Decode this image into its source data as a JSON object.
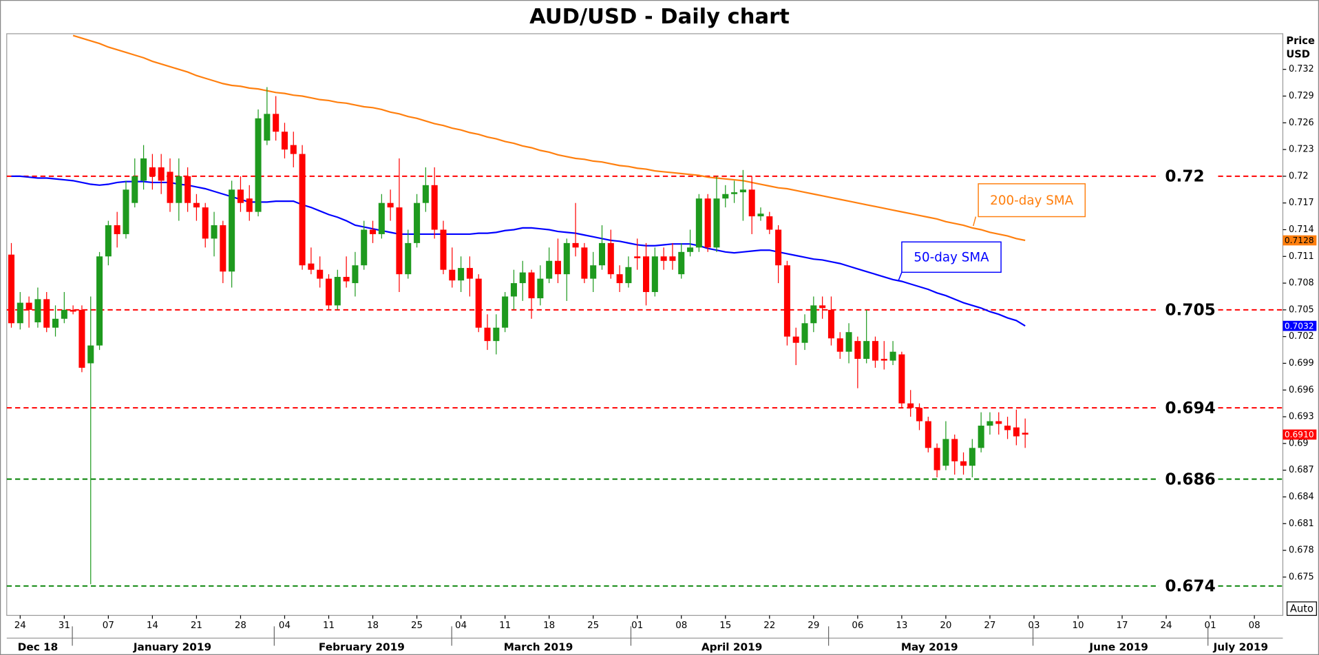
{
  "chart_data": {
    "type": "candlestick",
    "title": "AUD/USD - Daily chart",
    "y_label_lines": [
      "Price",
      "USD"
    ],
    "button": "Auto",
    "up_color": "#1e9a1e",
    "down_color": "#ff0000",
    "ylim": [
      0.6707,
      0.736
    ],
    "yticks": [
      0.675,
      0.678,
      0.681,
      0.684,
      0.687,
      0.69,
      0.693,
      0.696,
      0.699,
      0.702,
      0.705,
      0.708,
      0.711,
      0.714,
      0.717,
      0.72,
      0.723,
      0.726,
      0.729,
      0.732
    ],
    "x_groups": [
      "Dec 18",
      "January 2019",
      "February 2019",
      "March 2019",
      "April 2019",
      "May 2019",
      "June 2019",
      "July 2019"
    ],
    "categories": [
      null,
      "24",
      null,
      null,
      null,
      null,
      "31",
      null,
      null,
      null,
      null,
      "07",
      null,
      null,
      null,
      null,
      "14",
      null,
      null,
      null,
      null,
      "21",
      null,
      null,
      null,
      null,
      "28",
      null,
      null,
      null,
      null,
      "04",
      null,
      null,
      null,
      null,
      "11",
      null,
      null,
      null,
      null,
      "18",
      null,
      null,
      null,
      null,
      "25",
      null,
      null,
      null,
      null,
      "04",
      null,
      null,
      null,
      null,
      "11",
      null,
      null,
      null,
      null,
      "18",
      null,
      null,
      null,
      null,
      "25",
      null,
      null,
      null,
      null,
      "01",
      null,
      null,
      null,
      null,
      "08",
      null,
      null,
      null,
      null,
      "15",
      null,
      null,
      null,
      null,
      "22",
      null,
      null,
      null,
      null,
      "29",
      null,
      null,
      null,
      null,
      "06",
      null,
      null,
      null,
      null,
      "13",
      null,
      null,
      null,
      null,
      "20",
      null,
      null,
      null,
      null,
      "27",
      null,
      null,
      null,
      null,
      "03",
      null,
      null,
      null,
      null,
      "10",
      null,
      null,
      null,
      null,
      "17",
      null,
      null,
      null,
      null,
      "24",
      null,
      null,
      null,
      null,
      "01",
      null,
      null,
      null,
      null,
      "08"
    ],
    "open": [
      0.7112,
      0.7035,
      0.7058,
      0.7036,
      0.7062,
      0.703,
      0.704,
      0.705,
      0.705,
      0.699,
      0.701,
      0.711,
      0.7145,
      0.7135,
      0.717,
      0.7195,
      0.721,
      0.721,
      0.7205,
      0.717,
      0.72,
      0.717,
      0.7165,
      0.713,
      0.7145,
      0.7093,
      0.7185,
      0.7175,
      0.716,
      0.724,
      0.727,
      0.725,
      0.7235,
      0.7225,
      0.7102,
      0.7095,
      0.7085,
      0.7055,
      0.7087,
      0.708,
      0.71,
      0.714,
      0.7135,
      0.717,
      0.7165,
      0.709,
      0.7125,
      0.717,
      0.719,
      0.714,
      0.7095,
      0.7083,
      0.7097,
      0.7085,
      0.703,
      0.7015,
      0.703,
      0.7065,
      0.708,
      0.7092,
      0.7063,
      0.7085,
      0.7105,
      0.709,
      0.7125,
      0.712,
      0.7085,
      0.71,
      0.7125,
      0.709,
      0.708,
      0.711,
      0.711,
      0.707,
      0.711,
      0.711,
      0.709,
      0.7115,
      0.712,
      0.7175,
      0.712,
      0.7175,
      0.718,
      0.7182,
      0.7185,
      0.7155,
      0.7155,
      0.714,
      0.71,
      0.702,
      0.7013,
      0.7035,
      0.7055,
      0.705,
      0.7018,
      0.7003,
      0.7015,
      0.6995,
      0.7015,
      0.6995,
      0.6993,
      0.7,
      0.6945,
      0.694,
      0.6925,
      0.6895,
      0.6875,
      0.6905,
      0.688,
      0.6875,
      0.6895,
      0.692,
      0.6925,
      0.692,
      0.6918,
      0.6912,
      null,
      null,
      null,
      null,
      null,
      null,
      null,
      null,
      null,
      null,
      null,
      null,
      null,
      null,
      null,
      null,
      null,
      null,
      null,
      null,
      null,
      null,
      null,
      null,
      null,
      null
    ],
    "high": [
      0.7125,
      0.707,
      0.7065,
      0.7075,
      0.707,
      0.7055,
      0.707,
      0.7055,
      0.7055,
      0.7065,
      0.7115,
      0.715,
      0.716,
      0.7195,
      0.722,
      0.7235,
      0.7225,
      0.7225,
      0.722,
      0.722,
      0.721,
      0.718,
      0.717,
      0.716,
      0.715,
      0.7195,
      0.72,
      0.719,
      0.7275,
      0.73,
      0.729,
      0.726,
      0.725,
      0.7235,
      0.712,
      0.711,
      0.709,
      0.7095,
      0.711,
      0.7115,
      0.715,
      0.715,
      0.718,
      0.7185,
      0.722,
      0.714,
      0.718,
      0.721,
      0.721,
      0.715,
      0.712,
      0.711,
      0.711,
      0.709,
      0.7045,
      0.7045,
      0.707,
      0.7095,
      0.7105,
      0.7095,
      0.71,
      0.712,
      0.713,
      0.713,
      0.717,
      0.7125,
      0.7115,
      0.7145,
      0.714,
      0.71,
      0.711,
      0.713,
      0.7125,
      0.712,
      0.712,
      0.7125,
      0.7125,
      0.714,
      0.718,
      0.718,
      0.72,
      0.719,
      0.7195,
      0.7207,
      0.72,
      0.7165,
      0.716,
      0.7145,
      0.7105,
      0.703,
      0.7045,
      0.7065,
      0.7065,
      0.7065,
      0.7025,
      0.7035,
      0.702,
      0.705,
      0.702,
      0.7015,
      0.7015,
      0.7003,
      0.696,
      0.6945,
      0.693,
      0.69,
      0.6925,
      0.691,
      0.689,
      0.6905,
      0.6935,
      0.6935,
      0.6935,
      0.693,
      0.6938,
      0.6928,
      null,
      null,
      null,
      null,
      null,
      null,
      null,
      null,
      null,
      null,
      null,
      null,
      null,
      null,
      null,
      null,
      null,
      null,
      null,
      null,
      null,
      null,
      null,
      null,
      null,
      null
    ],
    "low": [
      0.703,
      0.7028,
      0.703,
      0.703,
      0.7025,
      0.702,
      0.7035,
      0.7045,
      0.698,
      0.6742,
      0.7005,
      0.71,
      0.712,
      0.713,
      0.7165,
      0.7185,
      0.7185,
      0.718,
      0.716,
      0.715,
      0.716,
      0.715,
      0.712,
      0.711,
      0.708,
      0.7075,
      0.716,
      0.715,
      0.7155,
      0.7235,
      0.724,
      0.722,
      0.721,
      0.7095,
      0.709,
      0.7075,
      0.705,
      0.705,
      0.7075,
      0.7065,
      0.7095,
      0.7125,
      0.713,
      0.715,
      0.707,
      0.7085,
      0.712,
      0.716,
      0.713,
      0.709,
      0.7075,
      0.707,
      0.7065,
      0.7025,
      0.7005,
      0.7,
      0.7025,
      0.705,
      0.706,
      0.704,
      0.7055,
      0.708,
      0.708,
      0.706,
      0.711,
      0.708,
      0.707,
      0.7095,
      0.7085,
      0.707,
      0.7075,
      0.7095,
      0.7055,
      0.7065,
      0.7095,
      0.7095,
      0.7085,
      0.711,
      0.7115,
      0.7115,
      0.7115,
      0.7165,
      0.717,
      0.715,
      0.7135,
      0.715,
      0.7135,
      0.708,
      0.701,
      0.6988,
      0.7005,
      0.7025,
      0.704,
      0.701,
      0.6995,
      0.699,
      0.6962,
      0.699,
      0.6985,
      0.6983,
      0.6988,
      0.694,
      0.693,
      0.6915,
      0.689,
      0.6862,
      0.687,
      0.6865,
      0.6865,
      0.6862,
      0.689,
      0.691,
      0.691,
      0.6905,
      0.6898,
      0.6895,
      null,
      null,
      null,
      null,
      null,
      null,
      null,
      null,
      null,
      null,
      null,
      null,
      null,
      null,
      null,
      null,
      null,
      null,
      null,
      null,
      null,
      null,
      null,
      null,
      null,
      null
    ],
    "close": [
      0.7035,
      0.7058,
      0.705,
      0.7062,
      0.703,
      0.704,
      0.705,
      0.7048,
      0.6985,
      0.701,
      0.711,
      0.7145,
      0.7135,
      0.7185,
      0.72,
      0.722,
      0.72,
      0.7195,
      0.717,
      0.72,
      0.717,
      0.7165,
      0.713,
      0.7145,
      0.7093,
      0.7185,
      0.717,
      0.716,
      0.7265,
      0.727,
      0.725,
      0.723,
      0.7225,
      0.71,
      0.7095,
      0.7085,
      0.7055,
      0.7087,
      0.7082,
      0.71,
      0.714,
      0.7135,
      0.717,
      0.7165,
      0.709,
      0.7125,
      0.717,
      0.719,
      0.714,
      0.7095,
      0.7083,
      0.7097,
      0.7085,
      0.703,
      0.7015,
      0.703,
      0.7065,
      0.708,
      0.7092,
      0.7063,
      0.7085,
      0.7105,
      0.709,
      0.7125,
      0.712,
      0.7085,
      0.71,
      0.7125,
      0.709,
      0.708,
      0.7098,
      0.7108,
      0.707,
      0.711,
      0.7105,
      0.7105,
      0.7115,
      0.712,
      0.7175,
      0.712,
      0.7175,
      0.718,
      0.7182,
      0.7185,
      0.7155,
      0.7158,
      0.714,
      0.71,
      0.702,
      0.7013,
      0.7035,
      0.7055,
      0.7052,
      0.7018,
      0.7003,
      0.7025,
      0.6995,
      0.7015,
      0.6993,
      0.6993,
      0.7003,
      0.6945,
      0.694,
      0.6925,
      0.6895,
      0.687,
      0.6905,
      0.688,
      0.6875,
      0.6895,
      0.692,
      0.6925,
      0.6922,
      0.6915,
      0.6908,
      0.691,
      null,
      null,
      null,
      null,
      null,
      null,
      null,
      null,
      null,
      null,
      null,
      null,
      null,
      null,
      null,
      null,
      null,
      null,
      null,
      null,
      null,
      null,
      null,
      null,
      null,
      null
    ],
    "last_close_label": "0.6910",
    "overlays": [
      {
        "name": "200-day SMA",
        "color": "#ff7f0e",
        "values": [
          null,
          null,
          null,
          null,
          null,
          null,
          null,
          0.7358,
          0.7355,
          0.7352,
          0.7349,
          0.7345,
          0.7342,
          0.7339,
          0.7336,
          0.7333,
          0.7329,
          0.7326,
          0.7323,
          0.732,
          0.7317,
          0.7313,
          0.731,
          0.7307,
          0.7304,
          0.7302,
          0.7301,
          0.7299,
          0.7298,
          0.7296,
          0.7294,
          0.7293,
          0.7291,
          0.729,
          0.7288,
          0.7286,
          0.7285,
          0.7283,
          0.7282,
          0.728,
          0.7278,
          0.7277,
          0.7275,
          0.7272,
          0.727,
          0.7267,
          0.7265,
          0.7262,
          0.7259,
          0.7257,
          0.7254,
          0.7252,
          0.7249,
          0.7247,
          0.7244,
          0.7242,
          0.7239,
          0.7237,
          0.7234,
          0.7232,
          0.7229,
          0.7227,
          0.7224,
          0.7222,
          0.722,
          0.7219,
          0.7217,
          0.7216,
          0.7214,
          0.7212,
          0.7211,
          0.7209,
          0.7208,
          0.7206,
          0.7205,
          0.7204,
          0.7203,
          0.7202,
          0.7201,
          0.7199,
          0.7198,
          0.7197,
          0.7196,
          0.7195,
          0.7193,
          0.7191,
          0.7189,
          0.7187,
          0.7186,
          0.7184,
          0.7182,
          0.718,
          0.7178,
          0.7176,
          0.7174,
          0.7172,
          0.717,
          0.7168,
          0.7166,
          0.7164,
          0.7162,
          0.716,
          0.7158,
          0.7156,
          0.7154,
          0.7152,
          0.7149,
          0.7147,
          0.7145,
          0.7142,
          0.714,
          0.7137,
          0.7135,
          0.7133,
          0.713,
          0.7128,
          null,
          null,
          null,
          null,
          null,
          null,
          null,
          null,
          null,
          null,
          null,
          null,
          null,
          null,
          null,
          null,
          null,
          null,
          null,
          null,
          null,
          null,
          null,
          null,
          null,
          null
        ]
      },
      {
        "name": "50-day SMA",
        "color": "#0000ff",
        "values": [
          0.72,
          0.72,
          0.7199,
          0.7198,
          0.7198,
          0.7197,
          0.7196,
          0.7195,
          0.7193,
          0.7191,
          0.719,
          0.7191,
          0.7193,
          0.7194,
          0.7194,
          0.7194,
          0.7193,
          0.7193,
          0.7193,
          0.7191,
          0.719,
          0.7188,
          0.7186,
          0.7183,
          0.718,
          0.7177,
          0.7174,
          0.7171,
          0.7171,
          0.7171,
          0.7172,
          0.7172,
          0.7172,
          0.7168,
          0.7165,
          0.7161,
          0.7157,
          0.7154,
          0.715,
          0.7145,
          0.7143,
          0.7141,
          0.7139,
          0.7137,
          0.7135,
          0.7135,
          0.7135,
          0.7135,
          0.7135,
          0.7135,
          0.7135,
          0.7135,
          0.7135,
          0.7136,
          0.7136,
          0.7137,
          0.7139,
          0.714,
          0.7142,
          0.7142,
          0.7141,
          0.714,
          0.7138,
          0.7137,
          0.7136,
          0.7134,
          0.7132,
          0.713,
          0.7128,
          0.7127,
          0.7125,
          0.7123,
          0.7122,
          0.7122,
          0.7123,
          0.7124,
          0.7124,
          0.7124,
          0.7122,
          0.7119,
          0.7117,
          0.7115,
          0.7114,
          0.7115,
          0.7116,
          0.7117,
          0.7117,
          0.7115,
          0.7113,
          0.7111,
          0.7109,
          0.7107,
          0.7106,
          0.7104,
          0.7102,
          0.7099,
          0.7096,
          0.7093,
          0.709,
          0.7087,
          0.7084,
          0.7082,
          0.7079,
          0.7076,
          0.7073,
          0.7069,
          0.7066,
          0.7062,
          0.7058,
          0.7055,
          0.7052,
          0.7048,
          0.7045,
          0.7041,
          0.7038,
          0.7032,
          null,
          null,
          null,
          null,
          null,
          null,
          null,
          null,
          null,
          null,
          null,
          null,
          null,
          null,
          null,
          null,
          null,
          null,
          null,
          null,
          null,
          null,
          null,
          null,
          null,
          null
        ]
      }
    ],
    "levels": [
      {
        "value": 0.72,
        "color": "#ff0000"
      },
      {
        "value": 0.705,
        "color": "#ff0000"
      },
      {
        "value": 0.694,
        "color": "#ff0000"
      },
      {
        "value": 0.686,
        "color": "#008000"
      },
      {
        "value": 0.674,
        "color": "#008000"
      }
    ]
  }
}
